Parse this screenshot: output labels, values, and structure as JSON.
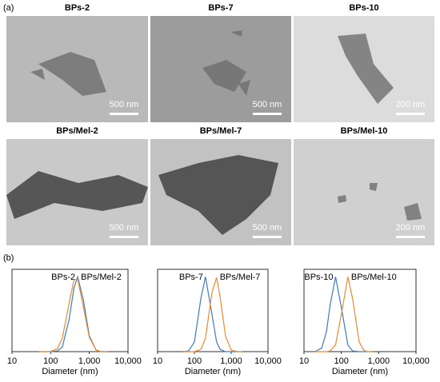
{
  "panel_labels": [
    "(a)",
    "(b)"
  ],
  "images": [
    {
      "title": "BPs-2",
      "scale_bar": "500 nm"
    },
    {
      "title": "BPs-7",
      "scale_bar": "500 nm"
    },
    {
      "title": "BPs-10",
      "scale_bar": "200 nm"
    },
    {
      "title": "BPs/Mel-2",
      "scale_bar": "500 nm"
    },
    {
      "title": "BPs/Mel-7",
      "scale_bar": "500 nm"
    },
    {
      "title": "BPs/Mel-10",
      "scale_bar": "200 nm"
    }
  ],
  "chart_data": [
    {
      "type": "line",
      "xlabel": "Diameter (nm)",
      "xscale": "log",
      "xlim": [
        10,
        10000
      ],
      "xticks": [
        10,
        100,
        {
          "value": 1000,
          "label": "1,000"
        },
        {
          "value": 10000,
          "label": "10,000"
        }
      ],
      "ylim": [
        0,
        1.1
      ],
      "x": [
        50,
        70,
        100,
        150,
        200,
        300,
        400,
        500,
        700,
        1000,
        1500,
        2000,
        3000
      ],
      "series": [
        {
          "name": "BPs-2",
          "color": "#3b7dc4",
          "values": [
            0,
            0,
            0,
            0.01,
            0.06,
            0.43,
            0.85,
            1,
            0.69,
            0.21,
            0.02,
            0,
            0
          ]
        },
        {
          "name": "BPs/Mel-2",
          "color": "#f08a2c",
          "values": [
            0,
            0,
            0.003,
            0.04,
            0.18,
            0.65,
            0.96,
            0.97,
            0.6,
            0.19,
            0.02,
            0.003,
            0
          ]
        }
      ]
    },
    {
      "type": "line",
      "xlabel": "Diameter (nm)",
      "xscale": "log",
      "xlim": [
        10,
        10000
      ],
      "xticks": [
        10,
        100,
        {
          "value": 1000,
          "label": "1,000"
        },
        {
          "value": 10000,
          "label": "10,000"
        }
      ],
      "ylim": [
        0,
        1.1
      ],
      "x": [
        50,
        70,
        100,
        150,
        200,
        300,
        400,
        500,
        700,
        1000,
        1500,
        2000
      ],
      "series": [
        {
          "name": "BPs-7",
          "color": "#3b7dc4",
          "values": [
            0,
            0.01,
            0.13,
            0.71,
            1,
            0.5,
            0.13,
            0.03,
            0,
            0,
            0,
            0
          ]
        },
        {
          "name": "BPs/Mel-7",
          "color": "#f08a2c",
          "values": [
            0,
            0,
            0,
            0.03,
            0.18,
            0.79,
            0.99,
            0.73,
            0.21,
            0.02,
            0,
            0
          ]
        }
      ]
    },
    {
      "type": "line",
      "xlabel": "Diameter (nm)",
      "xscale": "log",
      "xlim": [
        10,
        10000
      ],
      "xticks": [
        10,
        100,
        {
          "value": 1000,
          "label": "1,000"
        },
        {
          "value": 10000,
          "label": "10,000"
        }
      ],
      "ylim": [
        0,
        1.1
      ],
      "x": [
        20,
        30,
        40,
        50,
        70,
        100,
        150,
        200,
        300,
        400,
        500,
        700
      ],
      "series": [
        {
          "name": "BPs-10",
          "color": "#3b7dc4",
          "values": [
            0,
            0.05,
            0.27,
            0.62,
            1,
            0.59,
            0.09,
            0.01,
            0,
            0,
            0,
            0
          ]
        },
        {
          "name": "BPs/Mel-10",
          "color": "#f08a2c",
          "values": [
            0,
            0,
            0,
            0.01,
            0.09,
            0.5,
            1,
            0.71,
            0.13,
            0.02,
            0,
            0
          ]
        }
      ]
    }
  ]
}
